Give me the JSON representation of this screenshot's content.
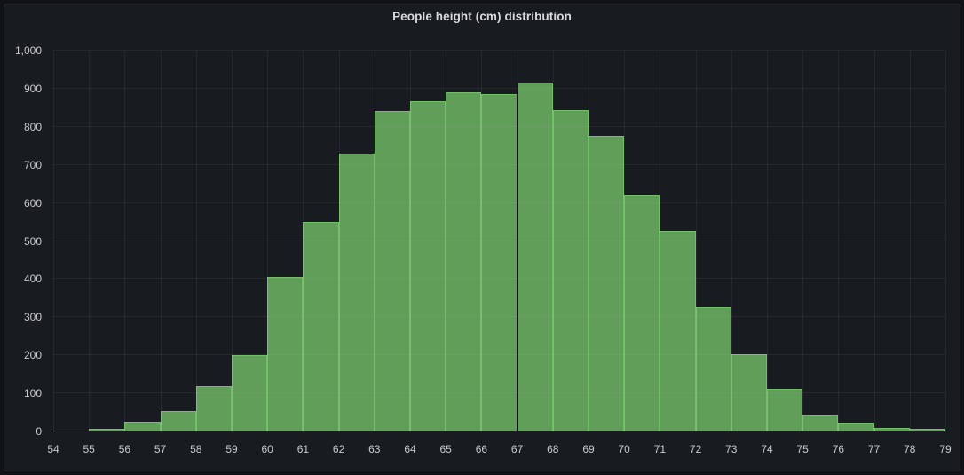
{
  "panel": {
    "title": "People height (cm) distribution"
  },
  "chart_data": {
    "type": "bar",
    "chart_kind": "histogram",
    "title": "People height (cm) distribution",
    "xlabel": "",
    "ylabel": "",
    "categories": [
      "54-55",
      "55-56",
      "56-57",
      "57-58",
      "58-59",
      "59-60",
      "60-61",
      "61-62",
      "62-63",
      "63-64",
      "64-65",
      "65-66",
      "66-67",
      "67-68",
      "68-69",
      "69-70",
      "70-71",
      "71-72",
      "72-73",
      "73-74",
      "74-75",
      "75-76",
      "76-77",
      "77-78",
      "78-79"
    ],
    "values": [
      3,
      8,
      26,
      54,
      120,
      201,
      405,
      549,
      730,
      841,
      868,
      890,
      885,
      916,
      845,
      777,
      620,
      528,
      327,
      202,
      111,
      45,
      24,
      10,
      6
    ],
    "x_tick_labels": [
      "54",
      "55",
      "56",
      "57",
      "58",
      "59",
      "60",
      "61",
      "62",
      "63",
      "64",
      "65",
      "66",
      "67",
      "68",
      "69",
      "70",
      "71",
      "72",
      "73",
      "74",
      "75",
      "76",
      "77",
      "78",
      "79"
    ],
    "x_tick_values": [
      54,
      55,
      56,
      57,
      58,
      59,
      60,
      61,
      62,
      63,
      64,
      65,
      66,
      67,
      68,
      69,
      70,
      71,
      72,
      73,
      74,
      75,
      76,
      77,
      78,
      79
    ],
    "y_tick_values": [
      0,
      100,
      200,
      300,
      400,
      500,
      600,
      700,
      800,
      900,
      1000
    ],
    "y_tick_labels": [
      "0",
      "100",
      "200",
      "300",
      "400",
      "500",
      "600",
      "700",
      "800",
      "900",
      "1,000"
    ],
    "xlim": [
      54,
      79
    ],
    "ylim": [
      0,
      1000
    ],
    "grid": true,
    "legend": "none",
    "dark_divider_x": 67
  },
  "colors": {
    "page_bg": "#111217",
    "panel_bg": "#181b1f",
    "panel_border": "#25272e",
    "grid": "rgba(204,204,220,0.08)",
    "bar_fill": "#619e5a",
    "bar_border": "#73bf69",
    "axis_text": "#c9cad0",
    "title_text": "#d8d9da",
    "divider": "#101114"
  }
}
